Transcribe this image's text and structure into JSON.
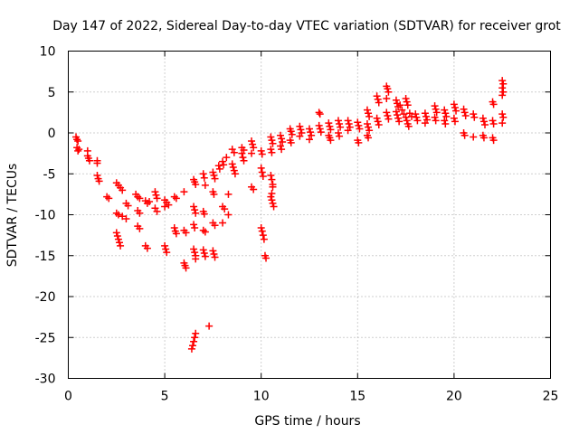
{
  "chart_data": {
    "type": "scatter",
    "title": "Day 147 of 2022, Sidereal Day-to-day VTEC variation (SDTVAR) for receiver grot",
    "xlabel": "GPS time / hours",
    "ylabel": "SDTVAR / TECUs",
    "xlim": [
      0,
      25
    ],
    "ylim": [
      -30,
      10
    ],
    "xticks": [
      0,
      5,
      10,
      15,
      20,
      25
    ],
    "yticks": [
      10,
      5,
      0,
      -5,
      -10,
      -15,
      -20,
      -25,
      -30
    ],
    "grid": true,
    "marker": "+",
    "color": "#ff0000",
    "series": [
      {
        "name": "SDTVAR",
        "points": [
          [
            0.4,
            -0.5
          ],
          [
            0.45,
            -0.8
          ],
          [
            0.5,
            -1.0
          ],
          [
            0.45,
            -1.8
          ],
          [
            0.5,
            -2.2
          ],
          [
            0.55,
            -2.0
          ],
          [
            1.0,
            -2.2
          ],
          [
            1.0,
            -2.8
          ],
          [
            1.05,
            -3.1
          ],
          [
            1.1,
            -3.4
          ],
          [
            1.5,
            -3.4
          ],
          [
            1.5,
            -3.7
          ],
          [
            1.5,
            -5.2
          ],
          [
            1.55,
            -5.6
          ],
          [
            1.6,
            -5.9
          ],
          [
            2.0,
            -7.8
          ],
          [
            2.1,
            -8.0
          ],
          [
            2.5,
            -6.1
          ],
          [
            2.6,
            -6.4
          ],
          [
            2.7,
            -6.7
          ],
          [
            2.8,
            -7.0
          ],
          [
            2.5,
            -9.8
          ],
          [
            2.6,
            -10.0
          ],
          [
            2.8,
            -10.2
          ],
          [
            3.0,
            -10.5
          ],
          [
            2.5,
            -12.2
          ],
          [
            2.55,
            -12.6
          ],
          [
            2.6,
            -13.0
          ],
          [
            2.65,
            -13.4
          ],
          [
            2.7,
            -13.8
          ],
          [
            3.0,
            -8.6
          ],
          [
            3.1,
            -8.9
          ],
          [
            3.5,
            -7.5
          ],
          [
            3.6,
            -7.8
          ],
          [
            3.7,
            -8.0
          ],
          [
            3.6,
            -9.5
          ],
          [
            3.7,
            -9.8
          ],
          [
            3.6,
            -11.4
          ],
          [
            3.7,
            -11.7
          ],
          [
            4.0,
            -8.3
          ],
          [
            4.1,
            -8.6
          ],
          [
            4.2,
            -8.4
          ],
          [
            4.0,
            -13.8
          ],
          [
            4.1,
            -14.1
          ],
          [
            4.5,
            -7.2
          ],
          [
            4.55,
            -7.6
          ],
          [
            4.6,
            -8.0
          ],
          [
            4.5,
            -9.2
          ],
          [
            4.6,
            -9.6
          ],
          [
            5.0,
            -8.2
          ],
          [
            5.1,
            -8.5
          ],
          [
            5.2,
            -8.8
          ],
          [
            5.0,
            -9.0
          ],
          [
            5.0,
            -13.8
          ],
          [
            5.05,
            -14.2
          ],
          [
            5.1,
            -14.6
          ],
          [
            5.5,
            -7.8
          ],
          [
            5.6,
            -8.0
          ],
          [
            5.5,
            -11.6
          ],
          [
            5.55,
            -12.0
          ],
          [
            5.6,
            -12.3
          ],
          [
            6.0,
            -7.2
          ],
          [
            6.0,
            -11.9
          ],
          [
            6.1,
            -12.2
          ],
          [
            6.0,
            -15.9
          ],
          [
            6.05,
            -16.2
          ],
          [
            6.1,
            -16.5
          ],
          [
            6.5,
            -5.7
          ],
          [
            6.55,
            -6.0
          ],
          [
            6.6,
            -6.3
          ],
          [
            6.5,
            -9.0
          ],
          [
            6.55,
            -9.4
          ],
          [
            6.6,
            -9.8
          ],
          [
            6.5,
            -11.2
          ],
          [
            6.55,
            -11.6
          ],
          [
            6.5,
            -14.2
          ],
          [
            6.55,
            -14.6
          ],
          [
            6.6,
            -15.0
          ],
          [
            6.6,
            -15.4
          ],
          [
            6.6,
            -24.5
          ],
          [
            6.55,
            -25.0
          ],
          [
            6.5,
            -25.5
          ],
          [
            6.45,
            -26.0
          ],
          [
            6.4,
            -26.4
          ],
          [
            7.0,
            -5.0
          ],
          [
            7.05,
            -5.5
          ],
          [
            7.1,
            -6.4
          ],
          [
            7.0,
            -9.6
          ],
          [
            7.05,
            -9.9
          ],
          [
            7.0,
            -11.9
          ],
          [
            7.1,
            -12.1
          ],
          [
            7.0,
            -14.3
          ],
          [
            7.05,
            -14.7
          ],
          [
            7.1,
            -15.1
          ],
          [
            7.3,
            -23.6
          ],
          [
            7.5,
            -4.8
          ],
          [
            7.55,
            -5.2
          ],
          [
            7.6,
            -5.6
          ],
          [
            7.5,
            -7.2
          ],
          [
            7.55,
            -7.5
          ],
          [
            7.5,
            -11.0
          ],
          [
            7.6,
            -11.3
          ],
          [
            7.5,
            -14.4
          ],
          [
            7.55,
            -14.8
          ],
          [
            7.6,
            -15.2
          ],
          [
            7.8,
            -4.0
          ],
          [
            7.85,
            -4.4
          ],
          [
            8.0,
            -3.5
          ],
          [
            8.05,
            -3.9
          ],
          [
            8.0,
            -9.0
          ],
          [
            8.1,
            -9.3
          ],
          [
            8.0,
            -11.0
          ],
          [
            8.2,
            -3.0
          ],
          [
            8.3,
            -7.5
          ],
          [
            8.3,
            -10.0
          ],
          [
            8.5,
            -3.8
          ],
          [
            8.55,
            -4.2
          ],
          [
            8.6,
            -4.6
          ],
          [
            8.65,
            -5.0
          ],
          [
            8.5,
            -2.0
          ],
          [
            8.6,
            -2.4
          ],
          [
            9.0,
            -2.5
          ],
          [
            9.05,
            -3.0
          ],
          [
            9.1,
            -3.4
          ],
          [
            9.0,
            -1.8
          ],
          [
            9.1,
            -2.1
          ],
          [
            9.5,
            -1.0
          ],
          [
            9.55,
            -1.4
          ],
          [
            9.6,
            -1.8
          ],
          [
            9.5,
            -2.5
          ],
          [
            9.5,
            -6.6
          ],
          [
            9.6,
            -6.9
          ],
          [
            10.0,
            -2.2
          ],
          [
            10.05,
            -2.6
          ],
          [
            10.0,
            -4.3
          ],
          [
            10.05,
            -4.8
          ],
          [
            10.1,
            -5.3
          ],
          [
            10.0,
            -11.6
          ],
          [
            10.05,
            -12.0
          ],
          [
            10.1,
            -12.5
          ],
          [
            10.15,
            -13.0
          ],
          [
            10.2,
            -15.0
          ],
          [
            10.25,
            -15.3
          ],
          [
            10.5,
            -0.5
          ],
          [
            10.55,
            -0.9
          ],
          [
            10.6,
            -1.3
          ],
          [
            10.5,
            -2.0
          ],
          [
            10.55,
            -2.4
          ],
          [
            10.5,
            -5.2
          ],
          [
            10.55,
            -5.7
          ],
          [
            10.6,
            -6.3
          ],
          [
            10.6,
            -6.6
          ],
          [
            10.55,
            -7.4
          ],
          [
            10.5,
            -7.8
          ],
          [
            10.55,
            -8.2
          ],
          [
            10.6,
            -8.6
          ],
          [
            10.65,
            -9.0
          ],
          [
            11.0,
            -0.3
          ],
          [
            11.05,
            -0.7
          ],
          [
            11.1,
            -1.1
          ],
          [
            11.0,
            -1.6
          ],
          [
            11.05,
            -2.0
          ],
          [
            11.5,
            0.5
          ],
          [
            11.55,
            0.2
          ],
          [
            11.6,
            -0.2
          ],
          [
            11.5,
            -0.9
          ],
          [
            11.55,
            -1.2
          ],
          [
            12.0,
            0.8
          ],
          [
            12.05,
            0.4
          ],
          [
            12.1,
            0.0
          ],
          [
            12.0,
            -0.4
          ],
          [
            12.5,
            0.5
          ],
          [
            12.55,
            0.1
          ],
          [
            12.6,
            -0.3
          ],
          [
            12.5,
            -0.8
          ],
          [
            13.0,
            2.5
          ],
          [
            13.05,
            2.3
          ],
          [
            13.0,
            0.9
          ],
          [
            13.05,
            0.5
          ],
          [
            13.1,
            0.1
          ],
          [
            13.5,
            1.2
          ],
          [
            13.55,
            0.8
          ],
          [
            13.6,
            0.4
          ],
          [
            13.5,
            -0.3
          ],
          [
            13.55,
            -0.6
          ],
          [
            13.6,
            -0.9
          ],
          [
            14.0,
            1.5
          ],
          [
            14.05,
            1.1
          ],
          [
            14.1,
            0.7
          ],
          [
            14.0,
            0.0
          ],
          [
            14.05,
            -0.4
          ],
          [
            14.5,
            1.5
          ],
          [
            14.55,
            1.1
          ],
          [
            14.6,
            0.7
          ],
          [
            14.5,
            0.3
          ],
          [
            15.0,
            1.3
          ],
          [
            15.05,
            0.9
          ],
          [
            15.1,
            0.5
          ],
          [
            15.0,
            -0.9
          ],
          [
            15.05,
            -1.2
          ],
          [
            15.5,
            2.8
          ],
          [
            15.55,
            2.4
          ],
          [
            15.6,
            2.0
          ],
          [
            15.5,
            1.1
          ],
          [
            15.55,
            0.7
          ],
          [
            15.6,
            0.3
          ],
          [
            15.5,
            -0.3
          ],
          [
            15.55,
            -0.6
          ],
          [
            16.0,
            4.5
          ],
          [
            16.05,
            4.1
          ],
          [
            16.1,
            3.7
          ],
          [
            16.0,
            1.8
          ],
          [
            16.05,
            1.4
          ],
          [
            16.1,
            1.0
          ],
          [
            16.5,
            5.7
          ],
          [
            16.55,
            5.4
          ],
          [
            16.6,
            5.0
          ],
          [
            16.5,
            2.5
          ],
          [
            16.55,
            2.1
          ],
          [
            16.6,
            1.7
          ],
          [
            16.5,
            4.2
          ],
          [
            17.0,
            4.0
          ],
          [
            17.05,
            3.6
          ],
          [
            17.1,
            3.2
          ],
          [
            17.0,
            2.6
          ],
          [
            17.05,
            2.2
          ],
          [
            17.1,
            1.8
          ],
          [
            17.15,
            1.4
          ],
          [
            17.2,
            3.4
          ],
          [
            17.3,
            2.8
          ],
          [
            17.4,
            2.3
          ],
          [
            17.5,
            4.2
          ],
          [
            17.55,
            3.8
          ],
          [
            17.6,
            3.4
          ],
          [
            17.5,
            1.9
          ],
          [
            17.55,
            1.5
          ],
          [
            17.6,
            1.1
          ],
          [
            17.65,
            0.8
          ],
          [
            17.7,
            2.4
          ],
          [
            17.8,
            2.0
          ],
          [
            18.0,
            2.3
          ],
          [
            18.05,
            1.9
          ],
          [
            18.1,
            1.5
          ],
          [
            18.5,
            2.4
          ],
          [
            18.55,
            2.0
          ],
          [
            18.6,
            1.6
          ],
          [
            18.5,
            1.2
          ],
          [
            19.0,
            3.3
          ],
          [
            19.05,
            2.9
          ],
          [
            19.1,
            2.5
          ],
          [
            19.0,
            1.9
          ],
          [
            19.05,
            1.5
          ],
          [
            19.5,
            2.8
          ],
          [
            19.55,
            2.4
          ],
          [
            19.6,
            2.0
          ],
          [
            19.5,
            1.5
          ],
          [
            19.55,
            1.1
          ],
          [
            20.0,
            3.5
          ],
          [
            20.05,
            3.1
          ],
          [
            20.1,
            2.7
          ],
          [
            20.0,
            1.8
          ],
          [
            20.05,
            1.4
          ],
          [
            20.5,
            2.9
          ],
          [
            20.55,
            2.5
          ],
          [
            20.6,
            2.1
          ],
          [
            20.5,
            0.0
          ],
          [
            20.55,
            -0.3
          ],
          [
            21.0,
            2.3
          ],
          [
            21.05,
            1.9
          ],
          [
            21.0,
            -0.5
          ],
          [
            21.5,
            1.8
          ],
          [
            21.55,
            1.4
          ],
          [
            21.6,
            1.0
          ],
          [
            21.5,
            -0.3
          ],
          [
            21.55,
            -0.6
          ],
          [
            22.0,
            3.8
          ],
          [
            22.05,
            3.5
          ],
          [
            22.0,
            1.5
          ],
          [
            22.05,
            1.1
          ],
          [
            22.0,
            -0.6
          ],
          [
            22.05,
            -0.9
          ],
          [
            22.5,
            6.4
          ],
          [
            22.55,
            6.0
          ],
          [
            22.5,
            5.5
          ],
          [
            22.55,
            5.0
          ],
          [
            22.5,
            4.6
          ],
          [
            22.5,
            2.3
          ],
          [
            22.55,
            1.9
          ],
          [
            22.5,
            1.2
          ]
        ]
      }
    ]
  }
}
